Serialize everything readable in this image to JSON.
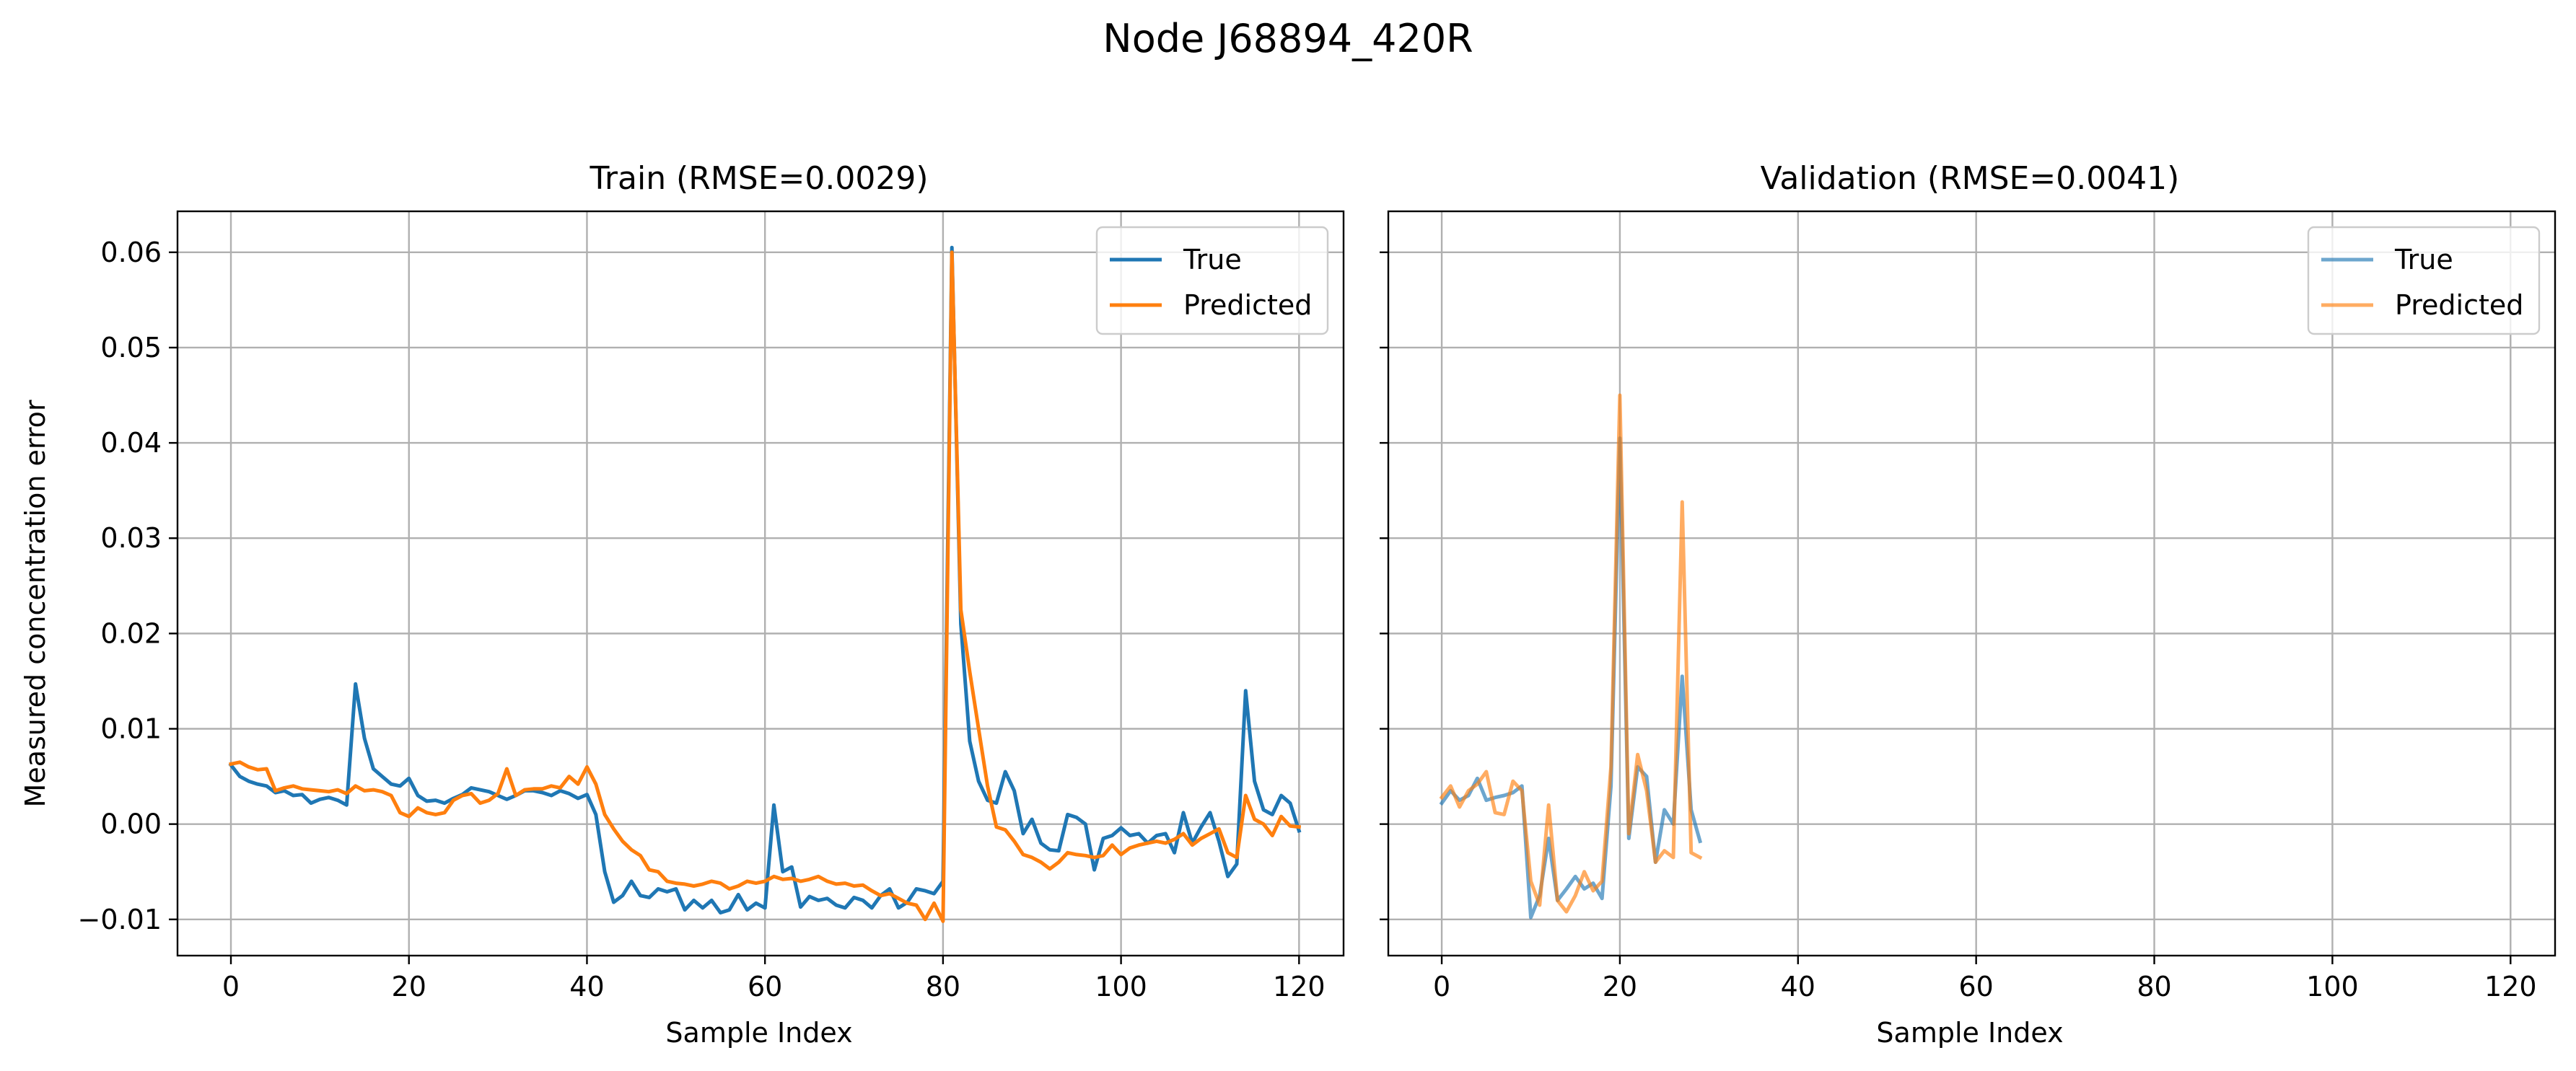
{
  "figure": {
    "title": "Node J68894_420R"
  },
  "chart_data": [
    {
      "type": "line",
      "title": "Train (RMSE=0.0029)",
      "xlabel": "Sample Index",
      "ylabel": "Measured concentration error",
      "xlim": [
        -6,
        125
      ],
      "ylim": [
        -0.0138,
        0.0643
      ],
      "xticks": [
        0,
        20,
        40,
        60,
        80,
        100,
        120
      ],
      "yticks": [
        -0.01,
        0.0,
        0.01,
        0.02,
        0.03,
        0.04,
        0.05,
        0.06
      ],
      "ytick_labels": [
        "−0.01",
        "0.00",
        "0.01",
        "0.02",
        "0.03",
        "0.04",
        "0.05",
        "0.06"
      ],
      "grid": true,
      "legend_position": "top-right",
      "x_start": 0,
      "series": [
        {
          "name": "True",
          "color": "#1f77b4",
          "opacity": 1,
          "values": [
            0.0062,
            0.005,
            0.0045,
            0.0042,
            0.004,
            0.0033,
            0.0035,
            0.003,
            0.0031,
            0.0022,
            0.0026,
            0.0028,
            0.0025,
            0.002,
            0.0147,
            0.009,
            0.0058,
            0.005,
            0.0042,
            0.004,
            0.0048,
            0.003,
            0.0024,
            0.0025,
            0.0022,
            0.0027,
            0.0031,
            0.0038,
            0.0036,
            0.0034,
            0.003,
            0.0026,
            0.003,
            0.0035,
            0.0035,
            0.0033,
            0.003,
            0.0035,
            0.0032,
            0.0027,
            0.0031,
            0.001,
            -0.005,
            -0.0082,
            -0.0075,
            -0.006,
            -0.0075,
            -0.0077,
            -0.0068,
            -0.0071,
            -0.0068,
            -0.009,
            -0.008,
            -0.0088,
            -0.008,
            -0.0093,
            -0.009,
            -0.0074,
            -0.009,
            -0.0083,
            -0.0088,
            0.002,
            -0.005,
            -0.0045,
            -0.0087,
            -0.0076,
            -0.008,
            -0.0078,
            -0.0085,
            -0.0088,
            -0.0077,
            -0.008,
            -0.0088,
            -0.0075,
            -0.0068,
            -0.0088,
            -0.0082,
            -0.0068,
            -0.007,
            -0.0073,
            -0.006,
            0.0605,
            0.021,
            0.0087,
            0.0045,
            0.0025,
            0.0022,
            0.0055,
            0.0035,
            -0.001,
            0.0005,
            -0.002,
            -0.0027,
            -0.0028,
            0.001,
            0.0007,
            0.0,
            -0.0048,
            -0.0015,
            -0.0012,
            -0.0004,
            -0.0012,
            -0.001,
            -0.002,
            -0.0012,
            -0.001,
            -0.003,
            0.0012,
            -0.002,
            -0.0003,
            0.0012,
            -0.0018,
            -0.0055,
            -0.0042,
            0.014,
            0.0045,
            0.0015,
            0.001,
            0.003,
            0.0022,
            -0.0007
          ]
        },
        {
          "name": "Predicted",
          "color": "#ff7f0e",
          "opacity": 1,
          "values": [
            0.0063,
            0.0065,
            0.006,
            0.0057,
            0.0058,
            0.0035,
            0.0038,
            0.004,
            0.0037,
            0.0036,
            0.0035,
            0.0034,
            0.0036,
            0.0032,
            0.004,
            0.0035,
            0.0036,
            0.0034,
            0.003,
            0.0012,
            0.0008,
            0.0017,
            0.0012,
            0.001,
            0.0012,
            0.0025,
            0.003,
            0.0032,
            0.0022,
            0.0025,
            0.0032,
            0.0058,
            0.003,
            0.0036,
            0.0037,
            0.0037,
            0.004,
            0.0038,
            0.005,
            0.0042,
            0.006,
            0.0042,
            0.001,
            -0.0005,
            -0.0018,
            -0.0027,
            -0.0033,
            -0.0048,
            -0.005,
            -0.006,
            -0.0062,
            -0.0063,
            -0.0065,
            -0.0063,
            -0.006,
            -0.0062,
            -0.0068,
            -0.0065,
            -0.006,
            -0.0062,
            -0.006,
            -0.0055,
            -0.0058,
            -0.0057,
            -0.006,
            -0.0058,
            -0.0055,
            -0.006,
            -0.0063,
            -0.0062,
            -0.0065,
            -0.0064,
            -0.007,
            -0.0075,
            -0.0073,
            -0.0078,
            -0.0083,
            -0.0085,
            -0.01,
            -0.0083,
            -0.0102,
            0.06,
            0.0225,
            0.016,
            0.01,
            0.004,
            -0.0003,
            -0.0006,
            -0.0018,
            -0.0032,
            -0.0035,
            -0.004,
            -0.0047,
            -0.004,
            -0.003,
            -0.0032,
            -0.0033,
            -0.0035,
            -0.0033,
            -0.0022,
            -0.0032,
            -0.0025,
            -0.0022,
            -0.002,
            -0.0018,
            -0.002,
            -0.0016,
            -0.001,
            -0.0022,
            -0.0015,
            -0.001,
            -0.0005,
            -0.003,
            -0.0035,
            0.003,
            0.0005,
            0.0,
            -0.0012,
            0.0008,
            -0.0002,
            -0.0003
          ]
        }
      ]
    },
    {
      "type": "line",
      "title": "Validation (RMSE=0.0041)",
      "xlabel": "Sample Index",
      "xlim": [
        -6,
        125
      ],
      "ylim": [
        -0.0138,
        0.0643
      ],
      "xticks": [
        0,
        20,
        40,
        60,
        80,
        100,
        120
      ],
      "yticks": [
        -0.01,
        0.0,
        0.01,
        0.02,
        0.03,
        0.04,
        0.05,
        0.06
      ],
      "ytick_labels": [],
      "grid": true,
      "legend_position": "top-right",
      "x_start": 0,
      "series": [
        {
          "name": "True",
          "color": "#1f77b4",
          "opacity": 0.65,
          "values": [
            0.0022,
            0.0035,
            0.0025,
            0.003,
            0.0048,
            0.0025,
            0.0028,
            0.003,
            0.0033,
            0.004,
            -0.0098,
            -0.0075,
            -0.0015,
            -0.008,
            -0.0068,
            -0.0055,
            -0.0068,
            -0.0062,
            -0.0078,
            0.004,
            0.0405,
            -0.0015,
            0.006,
            0.005,
            -0.004,
            0.0015,
            0.0,
            0.0155,
            0.0015,
            -0.0018
          ]
        },
        {
          "name": "Predicted",
          "color": "#ff7f0e",
          "opacity": 0.65,
          "values": [
            0.0028,
            0.004,
            0.0018,
            0.0035,
            0.0042,
            0.0055,
            0.0012,
            0.001,
            0.0045,
            0.0035,
            -0.006,
            -0.0085,
            0.002,
            -0.008,
            -0.0092,
            -0.0075,
            -0.005,
            -0.007,
            -0.006,
            0.006,
            0.045,
            -0.001,
            0.0073,
            0.0035,
            -0.004,
            -0.0028,
            -0.0035,
            0.0338,
            -0.003,
            -0.0035
          ]
        }
      ]
    }
  ]
}
